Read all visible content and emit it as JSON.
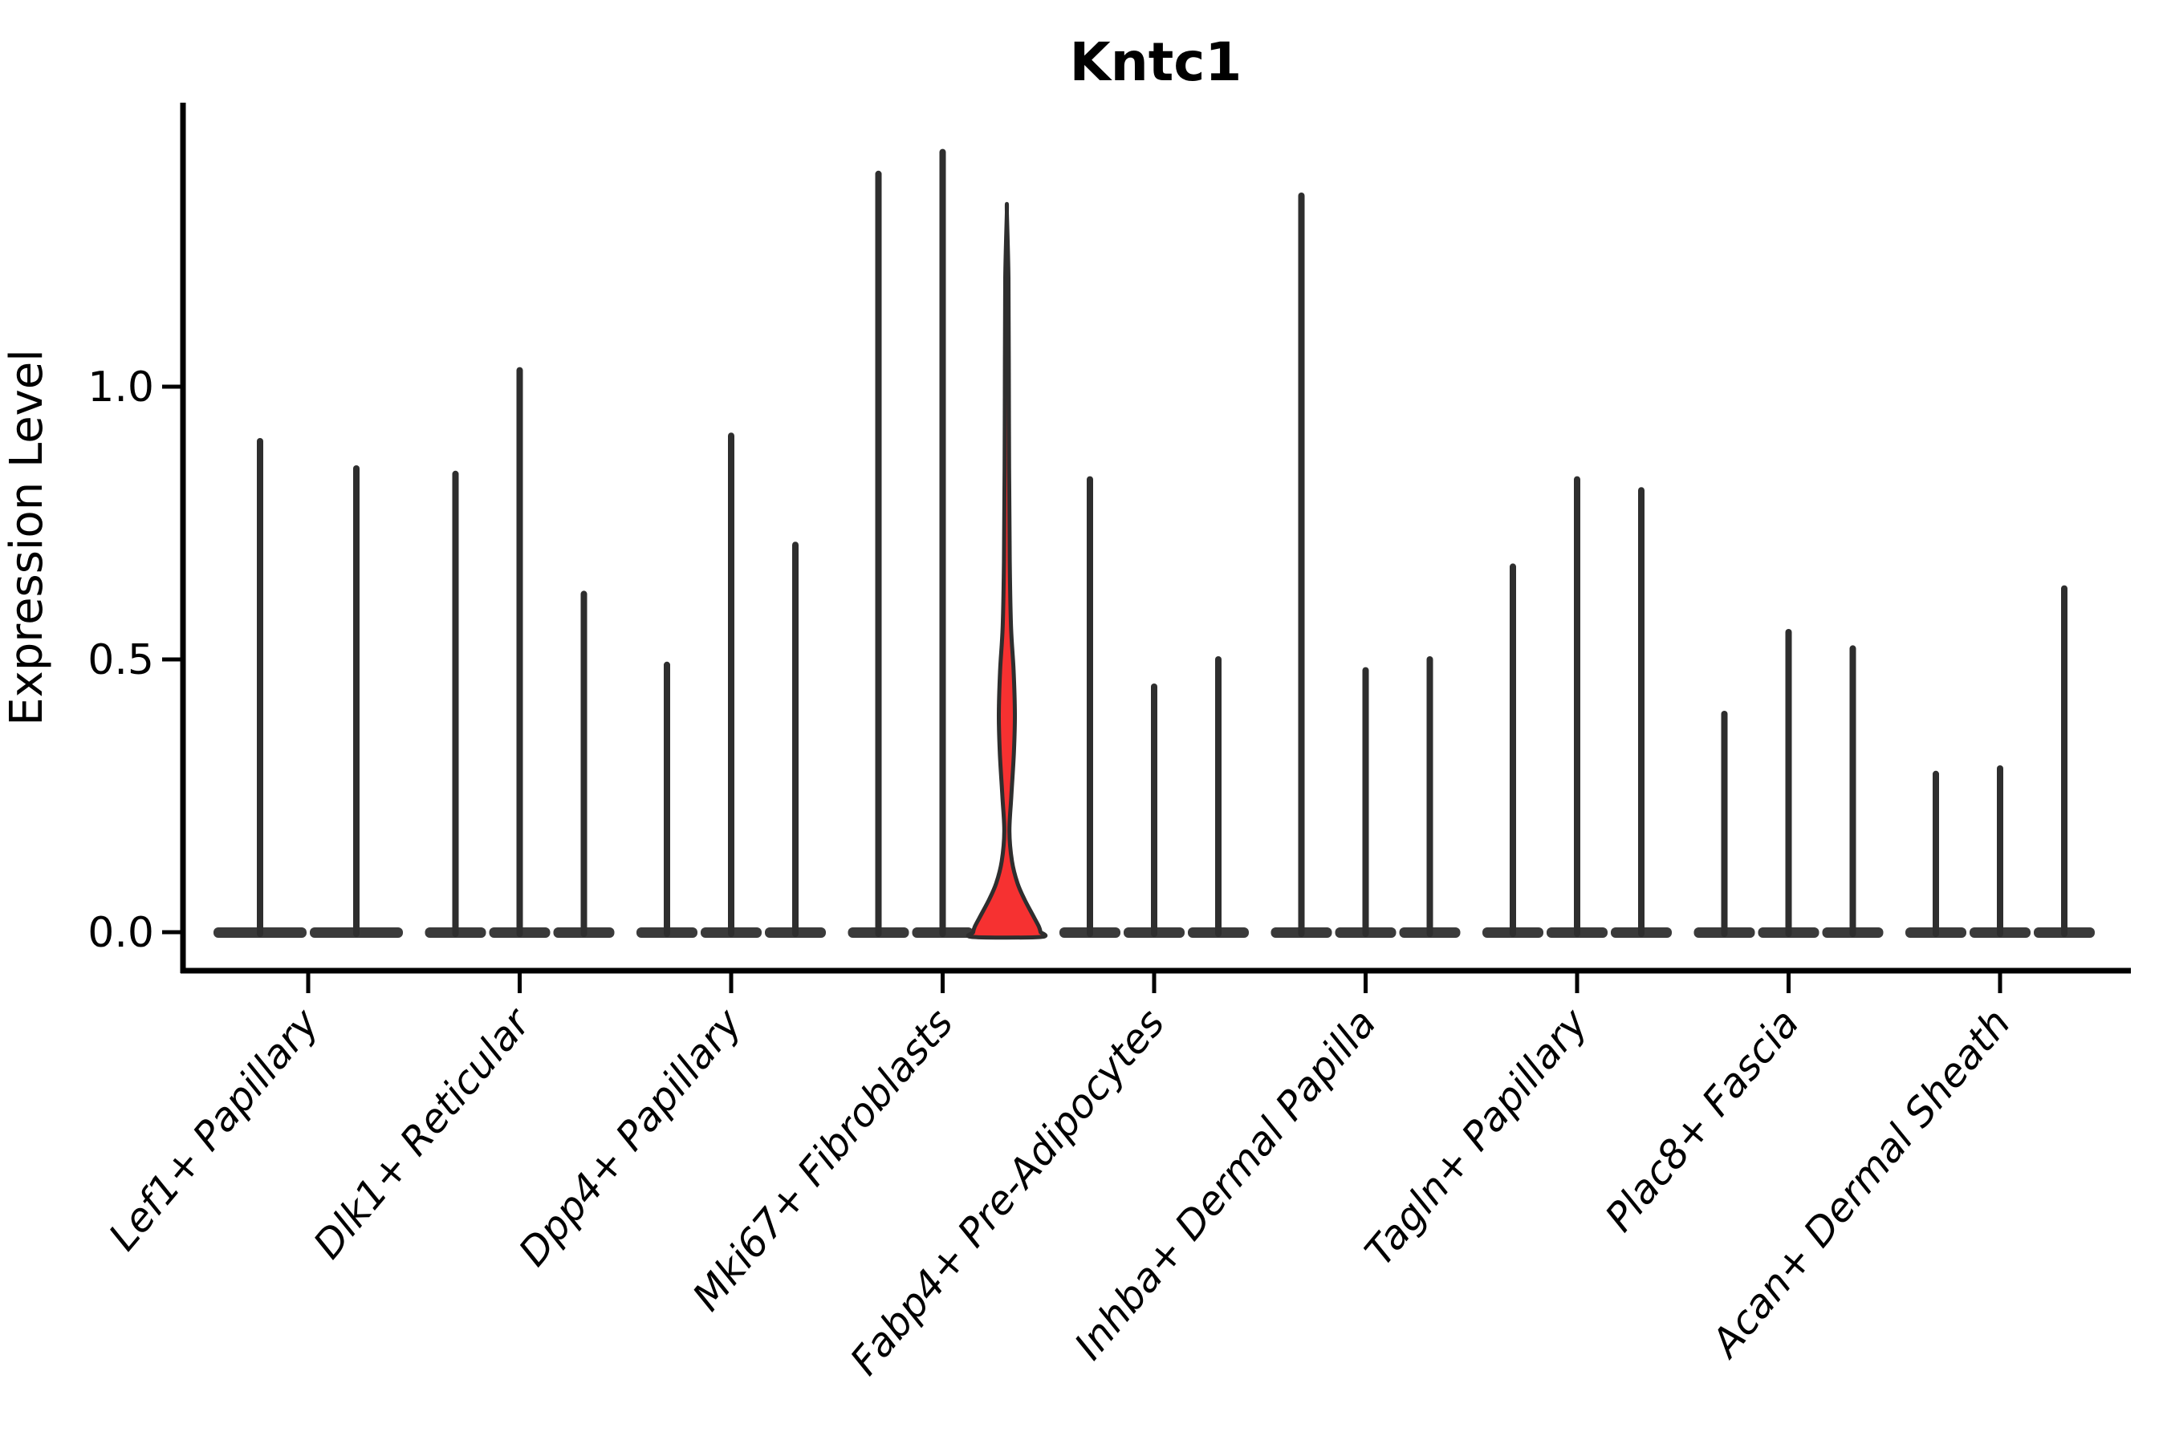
{
  "chart_data": {
    "type": "violin",
    "title": "Kntc1",
    "xlabel": "",
    "ylabel": "Expression Level",
    "ytick_labels": [
      "0.0",
      "0.5",
      "1.0"
    ],
    "ytick_values": [
      0.0,
      0.5,
      1.0
    ],
    "ylim": [
      -0.07,
      1.52
    ],
    "grid": false,
    "legend": false,
    "colors": {
      "background": "#ffffff",
      "axis": "#000000",
      "text": "#000000",
      "violin_outline": "#2e2e2e",
      "violin_base": "#3a3a3a",
      "highlight_fill": "#f63131"
    },
    "categories": [
      {
        "label": "Lef1+ Papillary",
        "violins": [
          {
            "max": 0.9
          },
          {
            "max": 0.85
          }
        ]
      },
      {
        "label": "Dlk1+ Reticular",
        "violins": [
          {
            "max": 0.84
          },
          {
            "max": 1.03
          },
          {
            "max": 0.62
          }
        ]
      },
      {
        "label": "Dpp4+ Papillary",
        "violins": [
          {
            "max": 0.49
          },
          {
            "max": 0.91
          },
          {
            "max": 0.71
          }
        ]
      },
      {
        "label": "Mki67+ Fibroblasts",
        "violins": [
          {
            "max": 1.39
          },
          {
            "max": 1.43
          },
          {
            "max": 1.32,
            "highlighted": true,
            "profile": [
              [
                0.0,
                1.05
              ],
              [
                0.01,
                1.0
              ],
              [
                0.03,
                0.82
              ],
              [
                0.06,
                0.55
              ],
              [
                0.09,
                0.33
              ],
              [
                0.13,
                0.16
              ],
              [
                0.185,
                0.08
              ],
              [
                0.25,
                0.14
              ],
              [
                0.33,
                0.22
              ],
              [
                0.4,
                0.25
              ],
              [
                0.48,
                0.21
              ],
              [
                0.56,
                0.13
              ],
              [
                0.68,
                0.09
              ],
              [
                0.85,
                0.07
              ],
              [
                1.05,
                0.06
              ],
              [
                1.2,
                0.05
              ],
              [
                1.32,
                0.0
              ]
            ]
          }
        ]
      },
      {
        "label": "Fabp4+ Pre-Adipocytes",
        "violins": [
          {
            "max": 0.83
          },
          {
            "max": 0.45
          },
          {
            "max": 0.5
          }
        ]
      },
      {
        "label": "Inhba+ Dermal Papilla",
        "violins": [
          {
            "max": 1.35
          },
          {
            "max": 0.48
          },
          {
            "max": 0.5
          }
        ]
      },
      {
        "label": "Tagln+ Papillary",
        "violins": [
          {
            "max": 0.67
          },
          {
            "max": 0.83
          },
          {
            "max": 0.81
          }
        ]
      },
      {
        "label": "Plac8+ Fascia",
        "violins": [
          {
            "max": 0.4
          },
          {
            "max": 0.55
          },
          {
            "max": 0.52
          }
        ]
      },
      {
        "label": "Acan+ Dermal Sheath",
        "violins": [
          {
            "max": 0.29
          },
          {
            "max": 0.3
          },
          {
            "max": 0.63
          }
        ]
      }
    ]
  }
}
